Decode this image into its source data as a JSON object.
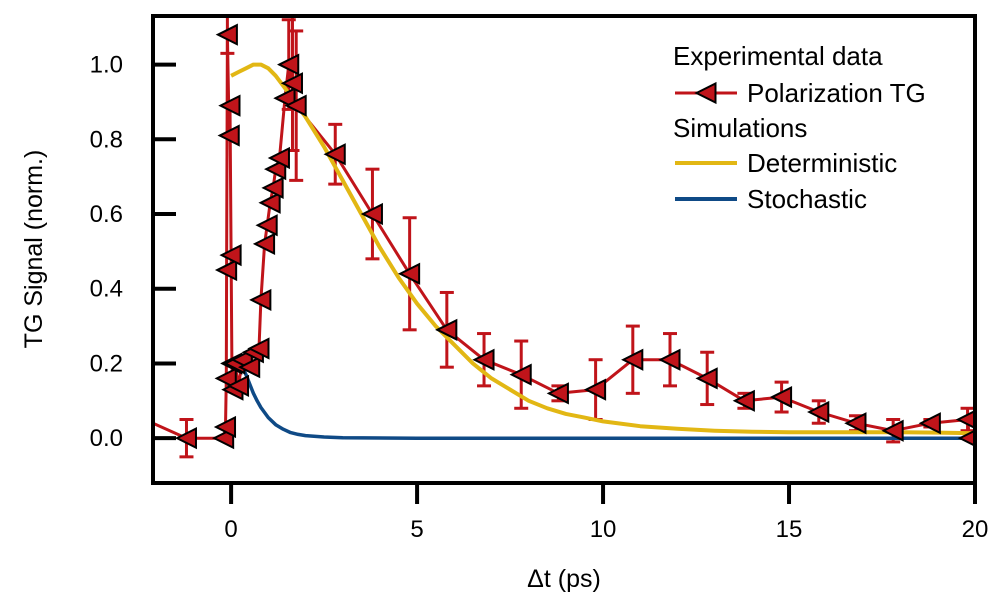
{
  "chart_data": {
    "type": "line",
    "xlabel": "Δt (ps)",
    "ylabel": "TG Signal (norm.)",
    "xlim": [
      -2.1,
      20
    ],
    "ylim": [
      -0.12,
      1.13
    ],
    "x_ticks": [
      0,
      5,
      10,
      15,
      20
    ],
    "x_tick_labels": [
      "0",
      "5",
      "10",
      "15",
      "20"
    ],
    "y_ticks": [
      0.0,
      0.2,
      0.4,
      0.6,
      0.8,
      1.0
    ],
    "y_tick_labels": [
      "0.0",
      "0.2",
      "0.4",
      "0.6",
      "0.8",
      "1.0"
    ],
    "legend": {
      "placement": "top-right",
      "entries": [
        {
          "label": "Experimental data",
          "kind": "header"
        },
        {
          "label": "Polarization TG",
          "kind": "marker-line",
          "series": "Polarization TG"
        },
        {
          "label": "Simulations",
          "kind": "header"
        },
        {
          "label": "Deterministic",
          "kind": "line",
          "series": "Deterministic"
        },
        {
          "label": "Stochastic",
          "kind": "line",
          "series": "Stochastic"
        }
      ]
    },
    "series": [
      {
        "name": "Polarization TG",
        "color": "#c0141a",
        "marker": "triangle-left",
        "marker_fill": "#c0141a",
        "marker_edge": "#000000",
        "points": [
          {
            "x": -2.1,
            "y": 0.04,
            "err": null
          },
          {
            "x": -1.2,
            "y": 0.0,
            "err": 0.05
          },
          {
            "x": -0.2,
            "y": 0.0,
            "err": null
          },
          {
            "x": -0.15,
            "y": 0.03,
            "err": null
          },
          {
            "x": -0.13,
            "y": 0.16,
            "err": null
          },
          {
            "x": -0.12,
            "y": 0.45,
            "err": null
          },
          {
            "x": -0.1,
            "y": 1.08,
            "err": 0.05
          },
          {
            "x": -0.05,
            "y": 0.81,
            "err": null
          },
          {
            "x": -0.03,
            "y": 0.89,
            "err": null
          },
          {
            "x": 0.0,
            "y": 0.49,
            "err": null
          },
          {
            "x": 0.02,
            "y": 0.2,
            "err": null
          },
          {
            "x": 0.05,
            "y": 0.13,
            "err": null
          },
          {
            "x": 0.1,
            "y": 0.2,
            "err": null
          },
          {
            "x": 0.2,
            "y": 0.14,
            "err": null
          },
          {
            "x": 0.3,
            "y": 0.21,
            "err": null
          },
          {
            "x": 0.5,
            "y": 0.19,
            "err": null
          },
          {
            "x": 0.6,
            "y": 0.23,
            "err": null
          },
          {
            "x": 0.75,
            "y": 0.24,
            "err": null
          },
          {
            "x": 0.8,
            "y": 0.37,
            "err": null
          },
          {
            "x": 0.9,
            "y": 0.52,
            "err": null
          },
          {
            "x": 0.97,
            "y": 0.57,
            "err": null
          },
          {
            "x": 1.05,
            "y": 0.63,
            "err": null
          },
          {
            "x": 1.13,
            "y": 0.67,
            "err": null
          },
          {
            "x": 1.2,
            "y": 0.72,
            "err": null
          },
          {
            "x": 1.3,
            "y": 0.75,
            "err": null
          },
          {
            "x": 1.45,
            "y": 0.91,
            "err": null
          },
          {
            "x": 1.55,
            "y": 1.0,
            "err": 0.12
          },
          {
            "x": 1.65,
            "y": 0.95,
            "err": 0.18
          },
          {
            "x": 1.75,
            "y": 0.89,
            "err": 0.2
          },
          {
            "x": 2.8,
            "y": 0.76,
            "err": 0.08
          },
          {
            "x": 3.8,
            "y": 0.6,
            "err": 0.12
          },
          {
            "x": 4.8,
            "y": 0.44,
            "err": 0.15
          },
          {
            "x": 5.8,
            "y": 0.29,
            "err": 0.1
          },
          {
            "x": 6.8,
            "y": 0.21,
            "err": 0.07
          },
          {
            "x": 7.8,
            "y": 0.17,
            "err": 0.09
          },
          {
            "x": 8.8,
            "y": 0.12,
            "err": 0.02
          },
          {
            "x": 9.8,
            "y": 0.13,
            "err": 0.08
          },
          {
            "x": 10.8,
            "y": 0.21,
            "err": 0.09
          },
          {
            "x": 11.8,
            "y": 0.21,
            "err": 0.07
          },
          {
            "x": 12.8,
            "y": 0.16,
            "err": 0.07
          },
          {
            "x": 13.8,
            "y": 0.1,
            "err": 0.02
          },
          {
            "x": 14.8,
            "y": 0.11,
            "err": 0.04
          },
          {
            "x": 15.8,
            "y": 0.07,
            "err": 0.03
          },
          {
            "x": 16.8,
            "y": 0.04,
            "err": 0.02
          },
          {
            "x": 17.8,
            "y": 0.02,
            "err": 0.03
          },
          {
            "x": 18.8,
            "y": 0.04,
            "err": 0.01
          },
          {
            "x": 19.8,
            "y": 0.05,
            "err": 0.03
          },
          {
            "x": 19.85,
            "y": 0.0,
            "err": null
          },
          {
            "x": 20.0,
            "y": 0.0,
            "err": null
          }
        ]
      },
      {
        "name": "Deterministic",
        "color": "#e2b714",
        "x": [
          0.0,
          0.2,
          0.4,
          0.6,
          0.8,
          1.0,
          1.2,
          1.5,
          2.0,
          2.5,
          3.0,
          3.5,
          4.0,
          4.5,
          5.0,
          5.5,
          6.0,
          6.5,
          7.0,
          7.5,
          8.0,
          8.5,
          9.0,
          9.5,
          10.0,
          11.0,
          12.0,
          13.0,
          14.0,
          15.0,
          16.0,
          17.0,
          18.0,
          19.0,
          20.0
        ],
        "y": [
          0.97,
          0.98,
          0.99,
          1.0,
          1.0,
          0.99,
          0.97,
          0.93,
          0.86,
          0.78,
          0.69,
          0.6,
          0.51,
          0.43,
          0.36,
          0.3,
          0.25,
          0.2,
          0.16,
          0.13,
          0.1,
          0.08,
          0.065,
          0.055,
          0.045,
          0.032,
          0.025,
          0.02,
          0.017,
          0.016,
          0.016,
          0.016,
          0.016,
          0.015,
          0.013
        ]
      },
      {
        "name": "Stochastic",
        "color": "#0f4a86",
        "x": [
          0.3,
          0.4,
          0.5,
          0.6,
          0.7,
          0.8,
          1.0,
          1.2,
          1.4,
          1.6,
          1.8,
          2.0,
          2.5,
          3.0,
          5.0,
          10.0,
          15.0,
          20.0
        ],
        "y": [
          0.19,
          0.17,
          0.145,
          0.12,
          0.1,
          0.082,
          0.055,
          0.036,
          0.024,
          0.015,
          0.01,
          0.007,
          0.003,
          0.001,
          0.0,
          0.0,
          0.0,
          0.0
        ]
      }
    ]
  }
}
